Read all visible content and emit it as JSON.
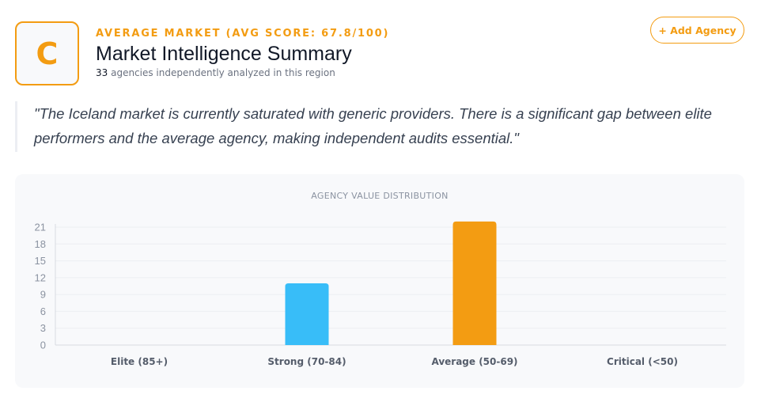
{
  "header": {
    "grade": "C",
    "market_label": "AVERAGE MARKET (AVG SCORE: 67.8/100)",
    "title": "Market Intelligence Summary",
    "agency_count": "33",
    "subline_text": " agencies independently analyzed in this region"
  },
  "actions": {
    "add_agency_label": "+ Add Agency"
  },
  "quote": "\"The Iceland market is currently saturated with generic providers. There is a significant gap between elite performers and the average agency, making independent audits essential.\"",
  "colors": {
    "accent": "#f39c12",
    "strong_bar": "#38bdf8",
    "average_bar": "#f39c12"
  },
  "chart_data": {
    "type": "bar",
    "title": "AGENCY VALUE DISTRIBUTION",
    "categories": [
      "Elite (85+)",
      "Strong (70-84)",
      "Average (50-69)",
      "Critical (<50)"
    ],
    "values": [
      0,
      11,
      22,
      0
    ],
    "bar_colors": [
      "#38bdf8",
      "#38bdf8",
      "#f39c12",
      "#f39c12"
    ],
    "ylim": [
      0,
      21
    ],
    "yticks": [
      0,
      3,
      6,
      9,
      12,
      15,
      18,
      21
    ],
    "grid": true,
    "legend": "none"
  }
}
